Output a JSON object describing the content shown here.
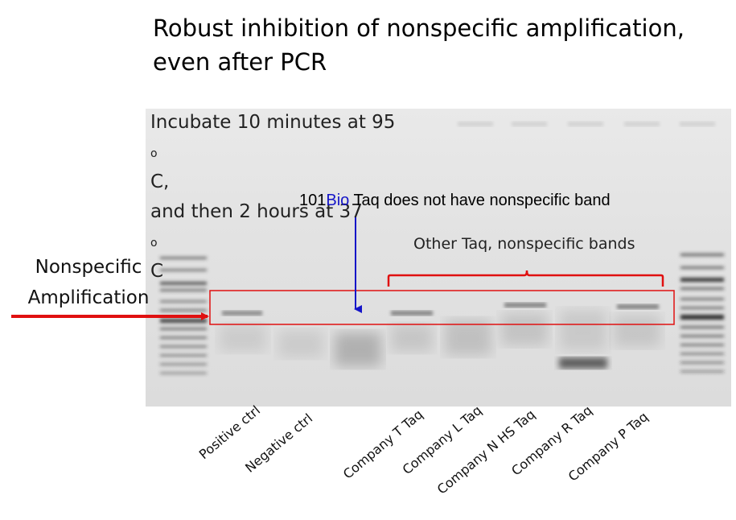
{
  "title": {
    "line1": "Robust inhibition of nonspecific amplification,",
    "line2": "even after PCR"
  },
  "incubation": {
    "line1_pre": "Incubate 10 minutes at 95",
    "line1_sup": "o",
    "line1_post": "C,",
    "line2_pre": "and then 2 hours at 37",
    "line2_sup": "o",
    "line2_post": "C"
  },
  "bio_note": {
    "prefix": "101",
    "brand": "Bio",
    "rest": " Taq does not have nonspecific band"
  },
  "other_note": "Other Taq,  nonspecific bands",
  "nonspecific_label": {
    "line1": "Nonspecific",
    "line2": "Amplification"
  },
  "lane_labels": [
    "Positive ctrl",
    "Negative ctrl",
    "Company T Taq",
    "Company L Taq",
    "Company N HS Taq",
    "Company R Taq",
    "Company P Taq"
  ],
  "colors": {
    "highlight_box": "#e01010",
    "arrow_red": "#e01010",
    "arrow_blue": "#1414c8",
    "brand_blue": "#1414c8"
  }
}
